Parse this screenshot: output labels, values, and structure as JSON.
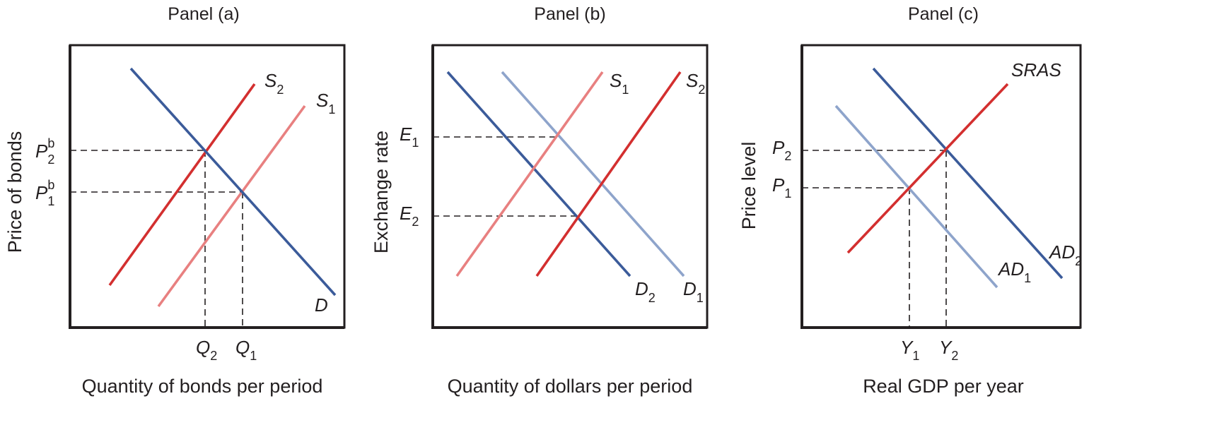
{
  "colors": {
    "demand": "#3b5b9a",
    "demand_light": "#8ea4cb",
    "supply": "#d32f2f",
    "supply_light": "#e88080",
    "ink": "#231f20"
  },
  "panels": [
    {
      "title": "Panel (a)",
      "xlabel": "Quantity of bonds per period",
      "ylabel": "Price of bonds",
      "y_ticks": [
        {
          "base": "P",
          "sub": "2",
          "sup": "b"
        },
        {
          "base": "P",
          "sub": "1",
          "sup": "b"
        }
      ],
      "x_ticks": [
        {
          "base": "Q",
          "sub": "2"
        },
        {
          "base": "Q",
          "sub": "1"
        }
      ],
      "curves": [
        {
          "base": "S",
          "sub": "2"
        },
        {
          "base": "S",
          "sub": "1"
        },
        {
          "base": "D",
          "sub": ""
        }
      ]
    },
    {
      "title": "Panel (b)",
      "xlabel": "Quantity of dollars per period",
      "ylabel": "Exchange rate",
      "y_ticks": [
        {
          "base": "E",
          "sub": "1"
        },
        {
          "base": "E",
          "sub": "2"
        }
      ],
      "curves": [
        {
          "base": "S",
          "sub": "1"
        },
        {
          "base": "S",
          "sub": "2"
        },
        {
          "base": "D",
          "sub": "2"
        },
        {
          "base": "D",
          "sub": "1"
        }
      ]
    },
    {
      "title": "Panel (c)",
      "xlabel": "Real GDP per year",
      "ylabel": "Price level",
      "y_ticks": [
        {
          "base": "P",
          "sub": "2"
        },
        {
          "base": "P",
          "sub": "1"
        }
      ],
      "x_ticks": [
        {
          "base": "Y",
          "sub": "1"
        },
        {
          "base": "Y",
          "sub": "2"
        }
      ],
      "curves": [
        {
          "base": "SRAS",
          "sub": ""
        },
        {
          "base": "AD",
          "sub": "1"
        },
        {
          "base": "AD",
          "sub": "2"
        }
      ]
    }
  ]
}
